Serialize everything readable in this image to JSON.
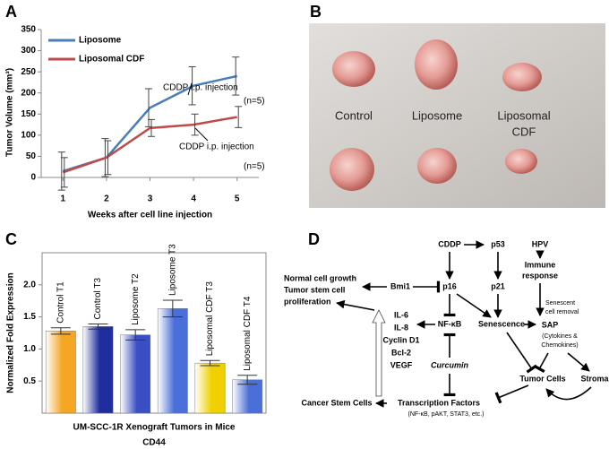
{
  "panels": [
    "A",
    "B",
    "C",
    "D"
  ],
  "chart_data": [
    {
      "type": "line",
      "xlabel": "Weeks after cell line injection",
      "ylabel": "Tumor Volume (mm³)",
      "x": [
        1,
        2,
        3,
        4,
        5
      ],
      "xlim": [
        0.5,
        5.5
      ],
      "xticks": [
        1,
        2,
        3,
        4,
        5
      ],
      "ylim": [
        0,
        350
      ],
      "yticks": [
        0,
        50,
        100,
        150,
        200,
        250,
        300,
        350
      ],
      "legend": "upper left",
      "series": [
        {
          "name": "Liposome",
          "color": "#4a7ebb",
          "values": [
            15,
            47,
            165,
            217,
            240
          ],
          "errors": [
            45,
            45,
            45,
            45,
            45
          ]
        },
        {
          "name": "Liposomal CDF",
          "color": "#be4b48",
          "values": [
            12,
            47,
            117,
            125,
            143
          ],
          "errors": [
            35,
            40,
            20,
            25,
            25
          ]
        }
      ],
      "annotations": [
        "CDDP i.p. injection",
        "(n=5)",
        "(n=5)",
        "CDDP i.p. injection"
      ]
    },
    {
      "type": "bar",
      "xlabel": "UM-SCC-1R Xenograft Tumors in Mice",
      "caption": "CD44",
      "ylabel": "Normalized Fold Expression",
      "categories": [
        "Control T1",
        "Control T3",
        "Liposome T2",
        "Liposome T3",
        "Liposomal CDF T3",
        "Liposomal CDF T4"
      ],
      "values": [
        1.28,
        1.35,
        1.22,
        1.63,
        0.78,
        0.52
      ],
      "errors": [
        0.05,
        0.04,
        0.08,
        0.13,
        0.04,
        0.07
      ],
      "colors": [
        "#f5a623",
        "#1f2e9e",
        "#3a4fc4",
        "#4a6fd8",
        "#f0d000",
        "#4a6fd8"
      ],
      "ylim": [
        0,
        2.5
      ],
      "yticks": [
        0.5,
        {
          "value": 1,
          "label": "1.0"
        },
        1.5,
        {
          "value": 2,
          "label": "2.0"
        }
      ]
    }
  ],
  "photo": {
    "labels": [
      {
        "lines": [
          "Control"
        ]
      },
      {
        "lines": [
          "Liposome"
        ]
      },
      {
        "lines": [
          "Liposomal",
          "CDF"
        ]
      }
    ]
  },
  "diagram": {
    "nodes": [
      {
        "lines": [
          "CDDP"
        ]
      },
      {
        "lines": [
          "p53"
        ]
      },
      {
        "lines": [
          "HPV"
        ]
      },
      {
        "lines": [
          "Immune",
          "response"
        ]
      },
      {
        "lines": [
          "Normal cell growth",
          "Tumor stem cell",
          "proliferation"
        ]
      },
      {
        "lines": [
          "Bmi1"
        ]
      },
      {
        "lines": [
          "p16"
        ]
      },
      {
        "lines": [
          "p21"
        ]
      },
      {
        "lines": [
          "Senescent",
          "cell removal"
        ]
      },
      {
        "lines": [
          "IL-6",
          "IL-8",
          "Cyclin D1",
          "Bcl-2",
          "VEGF"
        ]
      },
      {
        "lines": [
          "NF-κB"
        ]
      },
      {
        "lines": [
          "Senescence"
        ]
      },
      {
        "lines": [
          "SAP",
          "(Cytokines &",
          "Chemokines)"
        ]
      },
      {
        "lines": [
          "Curcumin"
        ]
      },
      {
        "lines": [
          "Tumor Cells"
        ]
      },
      {
        "lines": [
          "Stroma"
        ]
      },
      {
        "lines": [
          "Cancer Stem Cells"
        ]
      },
      {
        "lines": [
          "Transcription Factors",
          "(NF-κB, pAKT, STAT3, etc.)"
        ]
      }
    ]
  }
}
